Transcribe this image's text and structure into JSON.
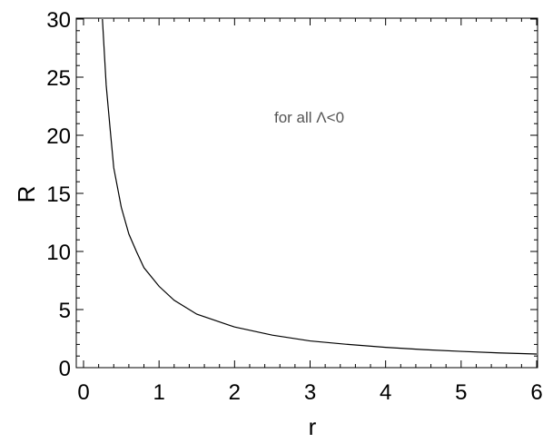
{
  "chart_data": {
    "type": "line",
    "title": "",
    "xlabel": "r",
    "ylabel": "R",
    "xlim": [
      0,
      6
    ],
    "ylim": [
      0,
      30
    ],
    "x_ticks": [
      "0",
      "1",
      "2",
      "3",
      "4",
      "5",
      "6"
    ],
    "y_ticks": [
      "0",
      "5",
      "10",
      "15",
      "20",
      "25",
      "30"
    ],
    "annotation": "for all Λ<0",
    "grid": false,
    "line_color": "#000000",
    "series": [
      {
        "values": [
          [
            0.25,
            30.0
          ],
          [
            0.3,
            24.3
          ],
          [
            0.35,
            20.7
          ],
          [
            0.4,
            17.2
          ],
          [
            0.5,
            13.8
          ],
          [
            0.6,
            11.5
          ],
          [
            0.7,
            10.0
          ],
          [
            0.8,
            8.6
          ],
          [
            1.0,
            7.0
          ],
          [
            1.2,
            5.8
          ],
          [
            1.5,
            4.6
          ],
          [
            2.0,
            3.5
          ],
          [
            2.5,
            2.8
          ],
          [
            3.0,
            2.3
          ],
          [
            3.5,
            2.0
          ],
          [
            4.0,
            1.75
          ],
          [
            4.5,
            1.55
          ],
          [
            5.0,
            1.4
          ],
          [
            5.5,
            1.27
          ],
          [
            6.0,
            1.17
          ]
        ]
      }
    ]
  }
}
